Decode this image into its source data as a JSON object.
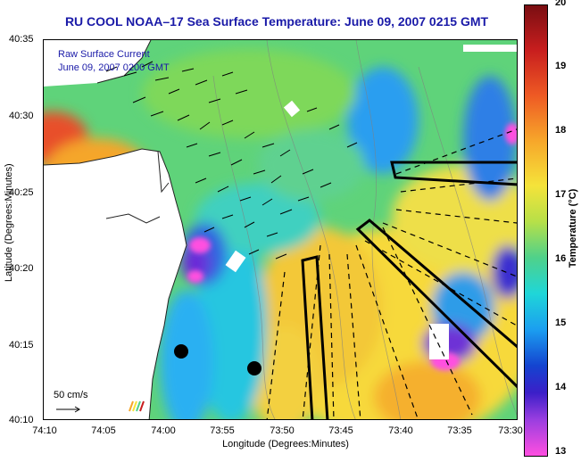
{
  "map": {
    "title": "RU COOL  NOAA–17  Sea Surface Temperature:  June 09, 2007 0215 GMT",
    "overlay_line1": "Raw Surface Current",
    "overlay_line2": "June 09, 2007 0200 GMT",
    "ylabel": "Latitude (Degrees:Minutes)",
    "xlabel": "Longitude (Degrees:Minutes)",
    "lat_ticks": [
      "40:35",
      "40:30",
      "40:25",
      "40:20",
      "40:15",
      "40:10"
    ],
    "lon_ticks": [
      "74:10",
      "74:05",
      "74:00",
      "73:55",
      "73:50",
      "73:45",
      "73:40",
      "73:35",
      "73:30"
    ],
    "scale_label": "50 cm/s"
  },
  "colorbar": {
    "label": "Temperature (°C)",
    "ticks": [
      "20",
      "19",
      "18",
      "17",
      "16",
      "15",
      "14",
      "13"
    ],
    "min": 13,
    "max": 20
  },
  "markers": {
    "count": 2,
    "color": "#000000"
  },
  "colors": {
    "title": "#1a1aa8",
    "land": "#ffffff",
    "warm": "#f5a62a",
    "cool": "#1b9ef0"
  }
}
